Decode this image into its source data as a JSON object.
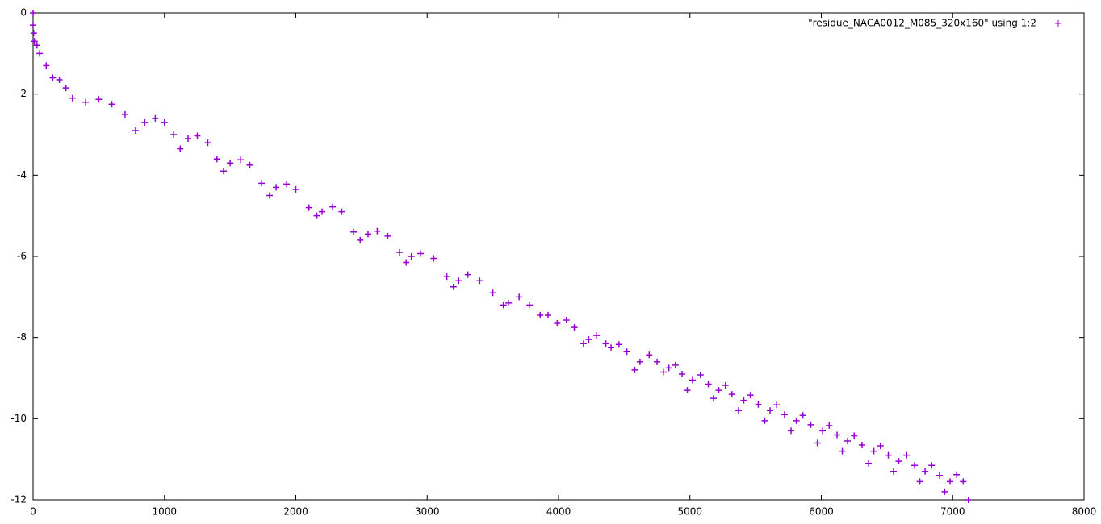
{
  "chart_data": {
    "type": "scatter",
    "xlim": [
      0,
      8000
    ],
    "ylim": [
      -12,
      0
    ],
    "xticks": [
      0,
      1000,
      2000,
      3000,
      4000,
      5000,
      6000,
      7000,
      8000
    ],
    "yticks": [
      -12,
      -10,
      -8,
      -6,
      -4,
      -2,
      0
    ],
    "legend": "top-right",
    "series": [
      {
        "name": "\"residue_NACA0012_M085_320x160\" using 1:2",
        "color": "#9400d3",
        "x": [
          0,
          0,
          5,
          10,
          30,
          50,
          100,
          150,
          200,
          250,
          300,
          400,
          500,
          600,
          700,
          780,
          850,
          930,
          1000,
          1070,
          1120,
          1180,
          1250,
          1330,
          1400,
          1450,
          1500,
          1580,
          1650,
          1740,
          1800,
          1850,
          1930,
          2000,
          2100,
          2160,
          2200,
          2280,
          2350,
          2440,
          2490,
          2550,
          2620,
          2700,
          2790,
          2840,
          2880,
          2950,
          3050,
          3150,
          3200,
          3240,
          3310,
          3400,
          3500,
          3580,
          3620,
          3700,
          3780,
          3860,
          3920,
          3990,
          4060,
          4120,
          4190,
          4230,
          4290,
          4360,
          4400,
          4460,
          4520,
          4580,
          4620,
          4690,
          4750,
          4800,
          4840,
          4890,
          4940,
          4980,
          5020,
          5080,
          5140,
          5180,
          5220,
          5270,
          5320,
          5370,
          5410,
          5460,
          5520,
          5570,
          5610,
          5660,
          5720,
          5770,
          5810,
          5860,
          5920,
          5970,
          6010,
          6060,
          6120,
          6160,
          6200,
          6250,
          6310,
          6360,
          6400,
          6450,
          6510,
          6550,
          6590,
          6650,
          6710,
          6750,
          6790,
          6840,
          6900,
          6940,
          6980,
          7030,
          7080,
          7120
        ],
        "values": [
          0,
          -0.3,
          -0.5,
          -0.7,
          -0.8,
          -1.0,
          -1.3,
          -1.6,
          -1.65,
          -1.85,
          -2.1,
          -2.2,
          -2.13,
          -2.25,
          -2.5,
          -2.9,
          -2.7,
          -2.6,
          -2.7,
          -3.0,
          -3.35,
          -3.1,
          -3.03,
          -3.2,
          -3.6,
          -3.9,
          -3.7,
          -3.62,
          -3.75,
          -4.2,
          -4.5,
          -4.3,
          -4.22,
          -4.35,
          -4.8,
          -5.0,
          -4.9,
          -4.78,
          -4.9,
          -5.4,
          -5.6,
          -5.45,
          -5.38,
          -5.5,
          -5.9,
          -6.15,
          -6.0,
          -5.93,
          -6.05,
          -6.5,
          -6.75,
          -6.6,
          -6.45,
          -6.6,
          -6.9,
          -7.2,
          -7.15,
          -7.0,
          -7.2,
          -7.45,
          -7.45,
          -7.65,
          -7.57,
          -7.75,
          -8.15,
          -8.05,
          -7.95,
          -8.15,
          -8.25,
          -8.17,
          -8.35,
          -8.8,
          -8.6,
          -8.43,
          -8.6,
          -8.85,
          -8.75,
          -8.68,
          -8.9,
          -9.3,
          -9.05,
          -8.92,
          -9.15,
          -9.5,
          -9.3,
          -9.18,
          -9.4,
          -9.8,
          -9.55,
          -9.42,
          -9.65,
          -10.05,
          -9.8,
          -9.66,
          -9.9,
          -10.3,
          -10.05,
          -9.92,
          -10.15,
          -10.6,
          -10.3,
          -10.17,
          -10.4,
          -10.8,
          -10.55,
          -10.42,
          -10.65,
          -11.1,
          -10.8,
          -10.67,
          -10.9,
          -11.3,
          -11.05,
          -10.9,
          -11.15,
          -11.55,
          -11.3,
          -11.15,
          -11.4,
          -11.8,
          -11.55,
          -11.38,
          -11.55,
          -12.0
        ]
      }
    ]
  }
}
